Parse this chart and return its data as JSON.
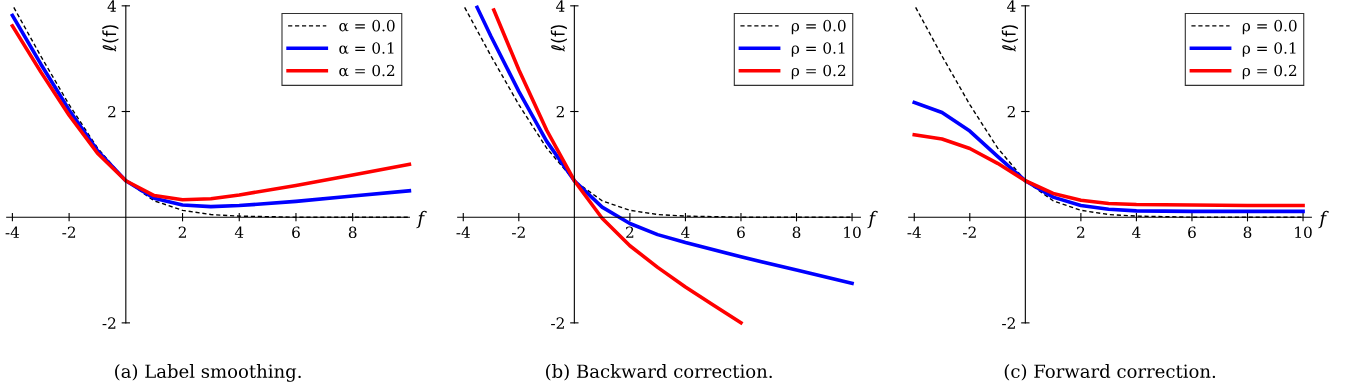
{
  "chart_data": [
    {
      "type": "line",
      "xlabel": "f",
      "ylabel": "ℓ(f)",
      "xlim": [
        -4.2,
        10
      ],
      "ylim": [
        -2,
        4
      ],
      "xticks": [
        -4,
        -2,
        2,
        4,
        6,
        8
      ],
      "yticks": [
        -2,
        2,
        4
      ],
      "legend": "top right",
      "grid": false,
      "annotations": [
        "(a) Label smoothing."
      ],
      "series": [
        {
          "name": "α = 0.0",
          "color": "#000000",
          "line_style": "dashed",
          "x": [
            -3.95,
            -3,
            -2,
            -1,
            0,
            1,
            2,
            3,
            4,
            6,
            8,
            10
          ],
          "values": [
            3.97,
            3.05,
            2.13,
            1.31,
            0.69,
            0.31,
            0.13,
            0.05,
            0.02,
            0.0,
            0.0,
            0.0
          ]
        },
        {
          "name": "α = 0.1",
          "color": "#0000ff",
          "line_style": "solid",
          "x": [
            -4,
            -3,
            -2,
            -1,
            0,
            1,
            2,
            3,
            4,
            6,
            8,
            10
          ],
          "values": [
            3.82,
            2.9,
            2.03,
            1.26,
            0.69,
            0.36,
            0.23,
            0.2,
            0.22,
            0.3,
            0.4,
            0.5
          ]
        },
        {
          "name": "α = 0.2",
          "color": "#ff0000",
          "line_style": "solid",
          "x": [
            -4,
            -3,
            -2,
            -1,
            0,
            1,
            2,
            3,
            4,
            6,
            8,
            10
          ],
          "values": [
            3.62,
            2.75,
            1.93,
            1.21,
            0.69,
            0.41,
            0.33,
            0.35,
            0.42,
            0.6,
            0.8,
            1.0
          ]
        }
      ]
    },
    {
      "type": "line",
      "xlabel": "f",
      "ylabel": "ℓ(f)",
      "xlim": [
        -4.2,
        10.3
      ],
      "ylim": [
        -2,
        4
      ],
      "xticks": [
        -4,
        -2,
        2,
        4,
        6,
        8,
        10
      ],
      "yticks": [
        -2,
        2,
        4
      ],
      "legend": "top right",
      "grid": false,
      "annotations": [
        "(b) Backward correction."
      ],
      "series": [
        {
          "name": "ρ = 0.0",
          "color": "#000000",
          "line_style": "dashed",
          "x": [
            -3.95,
            -3,
            -2,
            -1,
            0,
            1,
            2,
            3,
            4,
            6,
            8,
            10
          ],
          "values": [
            3.97,
            3.05,
            2.13,
            1.31,
            0.69,
            0.31,
            0.13,
            0.05,
            0.02,
            0.0,
            0.0,
            0.0
          ]
        },
        {
          "name": "ρ = 0.1",
          "color": "#0000ff",
          "line_style": "solid",
          "x": [
            -3.5,
            -3,
            -2,
            -1,
            0,
            1,
            2,
            3,
            4,
            6,
            8,
            10
          ],
          "values": [
            3.97,
            3.42,
            2.38,
            1.44,
            0.69,
            0.19,
            -0.12,
            -0.33,
            -0.48,
            -0.75,
            -1.0,
            -1.25
          ]
        },
        {
          "name": "ρ = 0.2",
          "color": "#ff0000",
          "line_style": "solid",
          "x": [
            -2.9,
            -2,
            -1,
            0,
            1,
            2,
            3,
            4,
            5,
            6
          ],
          "values": [
            3.92,
            2.79,
            1.65,
            0.69,
            -0.02,
            -0.54,
            -0.95,
            -1.32,
            -1.66,
            -2.0
          ]
        }
      ]
    },
    {
      "type": "line",
      "xlabel": "f",
      "ylabel": "ℓ(f)",
      "xlim": [
        -4.2,
        10.3
      ],
      "ylim": [
        -2,
        4
      ],
      "xticks": [
        -4,
        -2,
        2,
        4,
        6,
        8,
        10
      ],
      "yticks": [
        -2,
        2,
        4
      ],
      "legend": "top right",
      "grid": false,
      "annotations": [
        "(c) Forward correction."
      ],
      "series": [
        {
          "name": "ρ = 0.0",
          "color": "#000000",
          "line_style": "dashed",
          "x": [
            -3.95,
            -3,
            -2,
            -1,
            0,
            1,
            2,
            3,
            4,
            6,
            8,
            10
          ],
          "values": [
            3.97,
            3.05,
            2.13,
            1.31,
            0.69,
            0.31,
            0.13,
            0.05,
            0.02,
            0.0,
            0.0,
            0.0
          ]
        },
        {
          "name": "ρ = 0.1",
          "color": "#0000ff",
          "line_style": "solid",
          "x": [
            -4,
            -3,
            -2,
            -1,
            0,
            1,
            2,
            3,
            4,
            6,
            8,
            10
          ],
          "values": [
            2.17,
            1.98,
            1.63,
            1.15,
            0.69,
            0.38,
            0.22,
            0.15,
            0.12,
            0.11,
            0.11,
            0.11
          ]
        },
        {
          "name": "ρ = 0.2",
          "color": "#ff0000",
          "line_style": "solid",
          "x": [
            -4,
            -3,
            -2,
            -1,
            0,
            1,
            2,
            3,
            4,
            6,
            8,
            10
          ],
          "values": [
            1.56,
            1.48,
            1.3,
            1.02,
            0.69,
            0.45,
            0.32,
            0.26,
            0.24,
            0.23,
            0.22,
            0.22
          ]
        }
      ]
    }
  ]
}
